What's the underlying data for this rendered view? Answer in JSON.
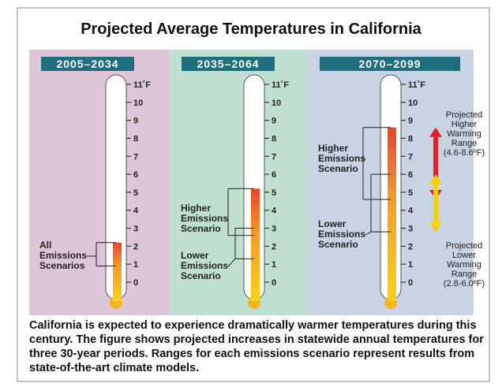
{
  "title": "Projected Average Temperatures in California",
  "caption": "California is expected to experience dramatically warmer temperatures during this century. The figure shows projected increases in statewide annual temperatures for three 30-year periods. Ranges for each emissions scenario represent results from state-of-the-art climate models.",
  "chart_data": [
    {
      "type": "thermometer",
      "title": "2005–2034",
      "ylim": [
        0,
        11
      ],
      "yticks": [
        0,
        1,
        2,
        3,
        4,
        5,
        6,
        7,
        8,
        9,
        10,
        {
          "value": 11,
          "label": "11˚F"
        }
      ],
      "series": [
        {
          "name": "All Emissions Scenarios",
          "values": [
            0.9,
            2.2
          ]
        }
      ]
    },
    {
      "type": "thermometer",
      "title": "2035–2064",
      "ylim": [
        0,
        11
      ],
      "yticks": [
        0,
        1,
        2,
        3,
        4,
        5,
        6,
        7,
        8,
        9,
        10,
        {
          "value": 11,
          "label": "11˚F"
        }
      ],
      "series": [
        {
          "name": "Higher Emissions Scenario",
          "values": [
            2.6,
            5.2
          ]
        },
        {
          "name": "Lower Emissions Scenario",
          "values": [
            1.3,
            3.0
          ]
        }
      ]
    },
    {
      "type": "thermometer",
      "title": "2070–2099",
      "ylim": [
        0,
        11
      ],
      "yticks": [
        0,
        1,
        2,
        3,
        4,
        5,
        6,
        7,
        8,
        9,
        10,
        {
          "value": 11,
          "label": "11˚F"
        }
      ],
      "series": [
        {
          "name": "Higher Emissions Scenario",
          "values": [
            4.6,
            8.6
          ]
        },
        {
          "name": "Lower Emissions Scenario",
          "values": [
            2.8,
            6.0
          ]
        }
      ],
      "annotations": [
        "Projected Higher Warming Range (4.6-8.6ºF)",
        "Projected Lower Warming Range (2.8-6.0ºF)"
      ]
    }
  ]
}
